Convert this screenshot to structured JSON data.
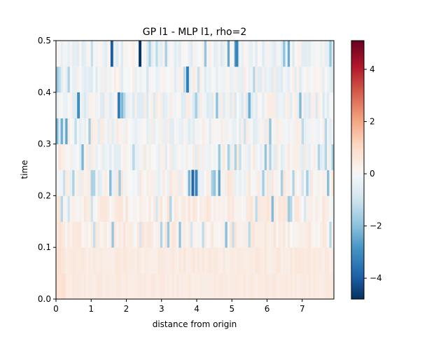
{
  "chart_data": {
    "type": "heatmap",
    "title": "GP l1 - MLP l1, rho=2",
    "xlabel": "distance from origin",
    "ylabel": "time",
    "xlim": [
      0,
      7.9
    ],
    "ylim": [
      0,
      0.5
    ],
    "x_ticks": [
      "0",
      "1",
      "2",
      "3",
      "4",
      "5",
      "6",
      "7"
    ],
    "y_ticks": [
      "0.0",
      "0.1",
      "0.2",
      "0.3",
      "0.4",
      "0.5"
    ],
    "colorbar": {
      "colormap": "RdBu_r",
      "vmin": -4.8,
      "vmax": 5.1,
      "ticks": [
        "−4",
        "−2",
        "0",
        "2",
        "4"
      ]
    },
    "grid": {
      "rows": 10,
      "cols": 120,
      "row_height": 0.05,
      "col_width": 0.06583
    },
    "description_of_values": "Row 0 (t 0.00-0.05) and row 1 mostly ~+0.4 to +0.6 (light orange); mid rows mixed +/-0.5; upper rows (t>0.3) mostly -0.2 to -1, with strong negative spikes near -3 to -4.7 at x~1.55, 2.35, 3.7-3.9, 5.1.",
    "spikes": [
      {
        "x": 1.55,
        "row": 9,
        "value": -4.0
      },
      {
        "x": 2.35,
        "row": 9,
        "value": -4.7
      },
      {
        "x": 5.1,
        "row": 9,
        "value": -3.2
      },
      {
        "x": 3.7,
        "row": 8,
        "value": -3.4
      },
      {
        "x": 0.6,
        "row": 7,
        "value": -3.0
      },
      {
        "x": 1.75,
        "row": 7,
        "value": -3.4
      },
      {
        "x": 3.85,
        "row": 4,
        "value": -3.8
      },
      {
        "x": 3.95,
        "row": 4,
        "value": -3.2
      }
    ]
  }
}
